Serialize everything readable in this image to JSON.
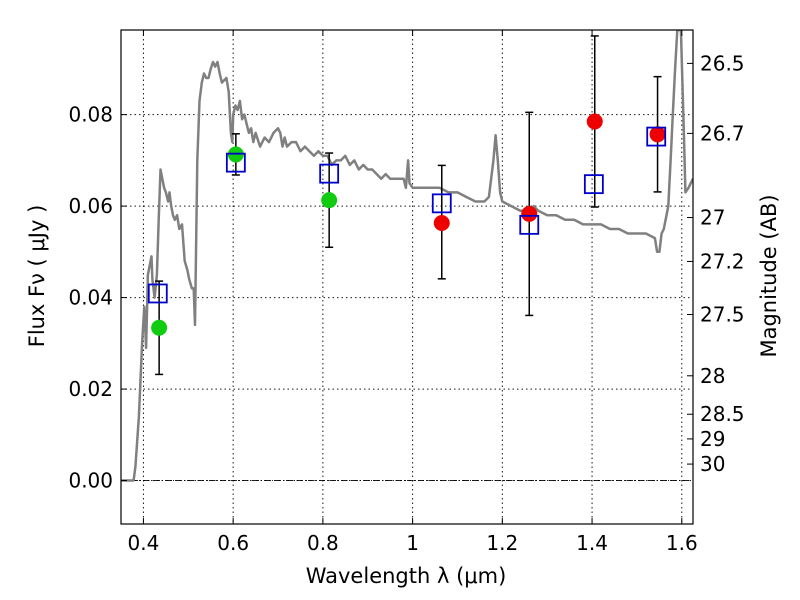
{
  "chart_data": {
    "type": "scatter",
    "xlabel": "Wavelength  λ (μm)",
    "ylabel": "Flux  Fν  ( μJy )",
    "y2label": "Magnitude (AB)",
    "xlim": [
      0.35,
      1.625
    ],
    "ylim": [
      -0.0095,
      0.0985
    ],
    "grid": true,
    "x_ticks": [
      0.4,
      0.6,
      0.8,
      1.0,
      1.2,
      1.4,
      1.6
    ],
    "x_tick_labels": [
      "0.4",
      "0.6",
      "0.8",
      "1",
      "1.2",
      "1.4",
      "1.6"
    ],
    "y_ticks": [
      0.0,
      0.02,
      0.04,
      0.06,
      0.08
    ],
    "y_tick_labels": [
      "0.00",
      "0.02",
      "0.04",
      "0.06",
      "0.08"
    ],
    "y2_ticks": [
      {
        "label": "26.5",
        "flux": 0.0912
      },
      {
        "label": "26.7",
        "flux": 0.0759
      },
      {
        "label": "27",
        "flux": 0.0575
      },
      {
        "label": "27.2",
        "flux": 0.0479
      },
      {
        "label": "27.5",
        "flux": 0.0363
      },
      {
        "label": "28",
        "flux": 0.0229
      },
      {
        "label": "28.5",
        "flux": 0.0145
      },
      {
        "label": "29",
        "flux": 0.0091
      },
      {
        "label": "30",
        "flux": 0.0036
      }
    ],
    "model_spectrum": {
      "color": "#808080",
      "points": [
        [
          0.35,
          0.0
        ],
        [
          0.378,
          0.0
        ],
        [
          0.382,
          0.003
        ],
        [
          0.39,
          0.014
        ],
        [
          0.397,
          0.03
        ],
        [
          0.402,
          0.038
        ],
        [
          0.406,
          0.029
        ],
        [
          0.41,
          0.045
        ],
        [
          0.414,
          0.047
        ],
        [
          0.418,
          0.049
        ],
        [
          0.42,
          0.044
        ],
        [
          0.425,
          0.04
        ],
        [
          0.43,
          0.045
        ],
        [
          0.434,
          0.057
        ],
        [
          0.438,
          0.068
        ],
        [
          0.442,
          0.066
        ],
        [
          0.446,
          0.064
        ],
        [
          0.45,
          0.063
        ],
        [
          0.455,
          0.061
        ],
        [
          0.458,
          0.063
        ],
        [
          0.462,
          0.06
        ],
        [
          0.466,
          0.058
        ],
        [
          0.47,
          0.057
        ],
        [
          0.475,
          0.058
        ],
        [
          0.48,
          0.055
        ],
        [
          0.486,
          0.056
        ],
        [
          0.492,
          0.048
        ],
        [
          0.498,
          0.046
        ],
        [
          0.502,
          0.044
        ],
        [
          0.508,
          0.042
        ],
        [
          0.512,
          0.042
        ],
        [
          0.515,
          0.034
        ],
        [
          0.52,
          0.07
        ],
        [
          0.525,
          0.083
        ],
        [
          0.53,
          0.087
        ],
        [
          0.535,
          0.089
        ],
        [
          0.54,
          0.088
        ],
        [
          0.545,
          0.088
        ],
        [
          0.55,
          0.09
        ],
        [
          0.555,
          0.0915
        ],
        [
          0.56,
          0.0905
        ],
        [
          0.565,
          0.0915
        ],
        [
          0.57,
          0.089
        ],
        [
          0.575,
          0.087
        ],
        [
          0.58,
          0.0875
        ],
        [
          0.585,
          0.088
        ],
        [
          0.59,
          0.085
        ],
        [
          0.595,
          0.076
        ],
        [
          0.598,
          0.074
        ],
        [
          0.6,
          0.08
        ],
        [
          0.605,
          0.082
        ],
        [
          0.61,
          0.081
        ],
        [
          0.615,
          0.083
        ],
        [
          0.62,
          0.079
        ],
        [
          0.625,
          0.08
        ],
        [
          0.63,
          0.078
        ],
        [
          0.635,
          0.076
        ],
        [
          0.64,
          0.077
        ],
        [
          0.645,
          0.074
        ],
        [
          0.65,
          0.076
        ],
        [
          0.66,
          0.073
        ],
        [
          0.67,
          0.075
        ],
        [
          0.68,
          0.074
        ],
        [
          0.69,
          0.076
        ],
        [
          0.7,
          0.077
        ],
        [
          0.705,
          0.076
        ],
        [
          0.71,
          0.073
        ],
        [
          0.715,
          0.075
        ],
        [
          0.72,
          0.073
        ],
        [
          0.73,
          0.074
        ],
        [
          0.74,
          0.074
        ],
        [
          0.75,
          0.072
        ],
        [
          0.76,
          0.073
        ],
        [
          0.77,
          0.072
        ],
        [
          0.78,
          0.071
        ],
        [
          0.79,
          0.072
        ],
        [
          0.8,
          0.071
        ],
        [
          0.81,
          0.071
        ],
        [
          0.82,
          0.069
        ],
        [
          0.83,
          0.07
        ],
        [
          0.84,
          0.07
        ],
        [
          0.85,
          0.071
        ],
        [
          0.86,
          0.069
        ],
        [
          0.87,
          0.07
        ],
        [
          0.88,
          0.068
        ],
        [
          0.89,
          0.069
        ],
        [
          0.9,
          0.068
        ],
        [
          0.91,
          0.068
        ],
        [
          0.92,
          0.067
        ],
        [
          0.93,
          0.066
        ],
        [
          0.94,
          0.067
        ],
        [
          0.95,
          0.066
        ],
        [
          0.96,
          0.066
        ],
        [
          0.97,
          0.066
        ],
        [
          0.98,
          0.066
        ],
        [
          0.985,
          0.064
        ],
        [
          0.99,
          0.07
        ],
        [
          0.993,
          0.065
        ],
        [
          1.0,
          0.064
        ],
        [
          1.02,
          0.064
        ],
        [
          1.04,
          0.064
        ],
        [
          1.06,
          0.064
        ],
        [
          1.08,
          0.063
        ],
        [
          1.1,
          0.063
        ],
        [
          1.12,
          0.062
        ],
        [
          1.14,
          0.061
        ],
        [
          1.16,
          0.061
        ],
        [
          1.17,
          0.062
        ],
        [
          1.18,
          0.07
        ],
        [
          1.185,
          0.0755
        ],
        [
          1.19,
          0.07
        ],
        [
          1.195,
          0.063
        ],
        [
          1.2,
          0.061
        ],
        [
          1.22,
          0.06
        ],
        [
          1.24,
          0.059
        ],
        [
          1.26,
          0.059
        ],
        [
          1.27,
          0.06
        ],
        [
          1.28,
          0.059
        ],
        [
          1.3,
          0.058
        ],
        [
          1.32,
          0.058
        ],
        [
          1.34,
          0.057
        ],
        [
          1.36,
          0.057
        ],
        [
          1.38,
          0.056
        ],
        [
          1.4,
          0.056
        ],
        [
          1.42,
          0.056
        ],
        [
          1.44,
          0.055
        ],
        [
          1.46,
          0.055
        ],
        [
          1.48,
          0.054
        ],
        [
          1.5,
          0.054
        ],
        [
          1.52,
          0.054
        ],
        [
          1.54,
          0.053
        ],
        [
          1.545,
          0.05
        ],
        [
          1.55,
          0.05
        ],
        [
          1.555,
          0.054
        ],
        [
          1.56,
          0.055
        ],
        [
          1.57,
          0.06
        ],
        [
          1.575,
          0.07
        ],
        [
          1.58,
          0.08
        ],
        [
          1.585,
          0.09
        ],
        [
          1.59,
          0.0985
        ],
        [
          1.598,
          0.0985
        ],
        [
          1.605,
          0.075
        ],
        [
          1.608,
          0.063
        ],
        [
          1.615,
          0.064
        ],
        [
          1.625,
          0.066
        ]
      ]
    },
    "series": [
      {
        "marker": "square",
        "color": "#0000cc",
        "points": [
          {
            "x": 0.432,
            "y": 0.0409
          },
          {
            "x": 0.606,
            "y": 0.0695
          },
          {
            "x": 0.814,
            "y": 0.0671
          },
          {
            "x": 1.065,
            "y": 0.0606
          },
          {
            "x": 1.26,
            "y": 0.0559
          },
          {
            "x": 1.404,
            "y": 0.0648
          },
          {
            "x": 1.543,
            "y": 0.0752
          }
        ]
      },
      {
        "marker": "circle",
        "color": "#11cc11",
        "points": [
          {
            "x": 0.435,
            "y": 0.0334,
            "yerr": [
              0.0102,
              0.0102
            ]
          },
          {
            "x": 0.606,
            "y": 0.0713,
            "yerr": [
              0.0045,
              0.0045
            ]
          },
          {
            "x": 0.814,
            "y": 0.0613,
            "yerr": [
              0.0103,
              0.0103
            ]
          }
        ]
      },
      {
        "marker": "circle",
        "color": "#ee0000",
        "points": [
          {
            "x": 1.065,
            "y": 0.0563,
            "yerr": [
              0.0122,
              0.0126
            ]
          },
          {
            "x": 1.26,
            "y": 0.0583,
            "yerr": [
              0.0222,
              0.0222
            ]
          },
          {
            "x": 1.406,
            "y": 0.0785,
            "yerr": [
              0.0187,
              0.0187
            ]
          },
          {
            "x": 1.546,
            "y": 0.0757,
            "yerr": [
              0.0126,
              0.0126
            ]
          }
        ]
      }
    ],
    "reference_line": {
      "y": 0.0,
      "style": "dash-dot"
    }
  }
}
